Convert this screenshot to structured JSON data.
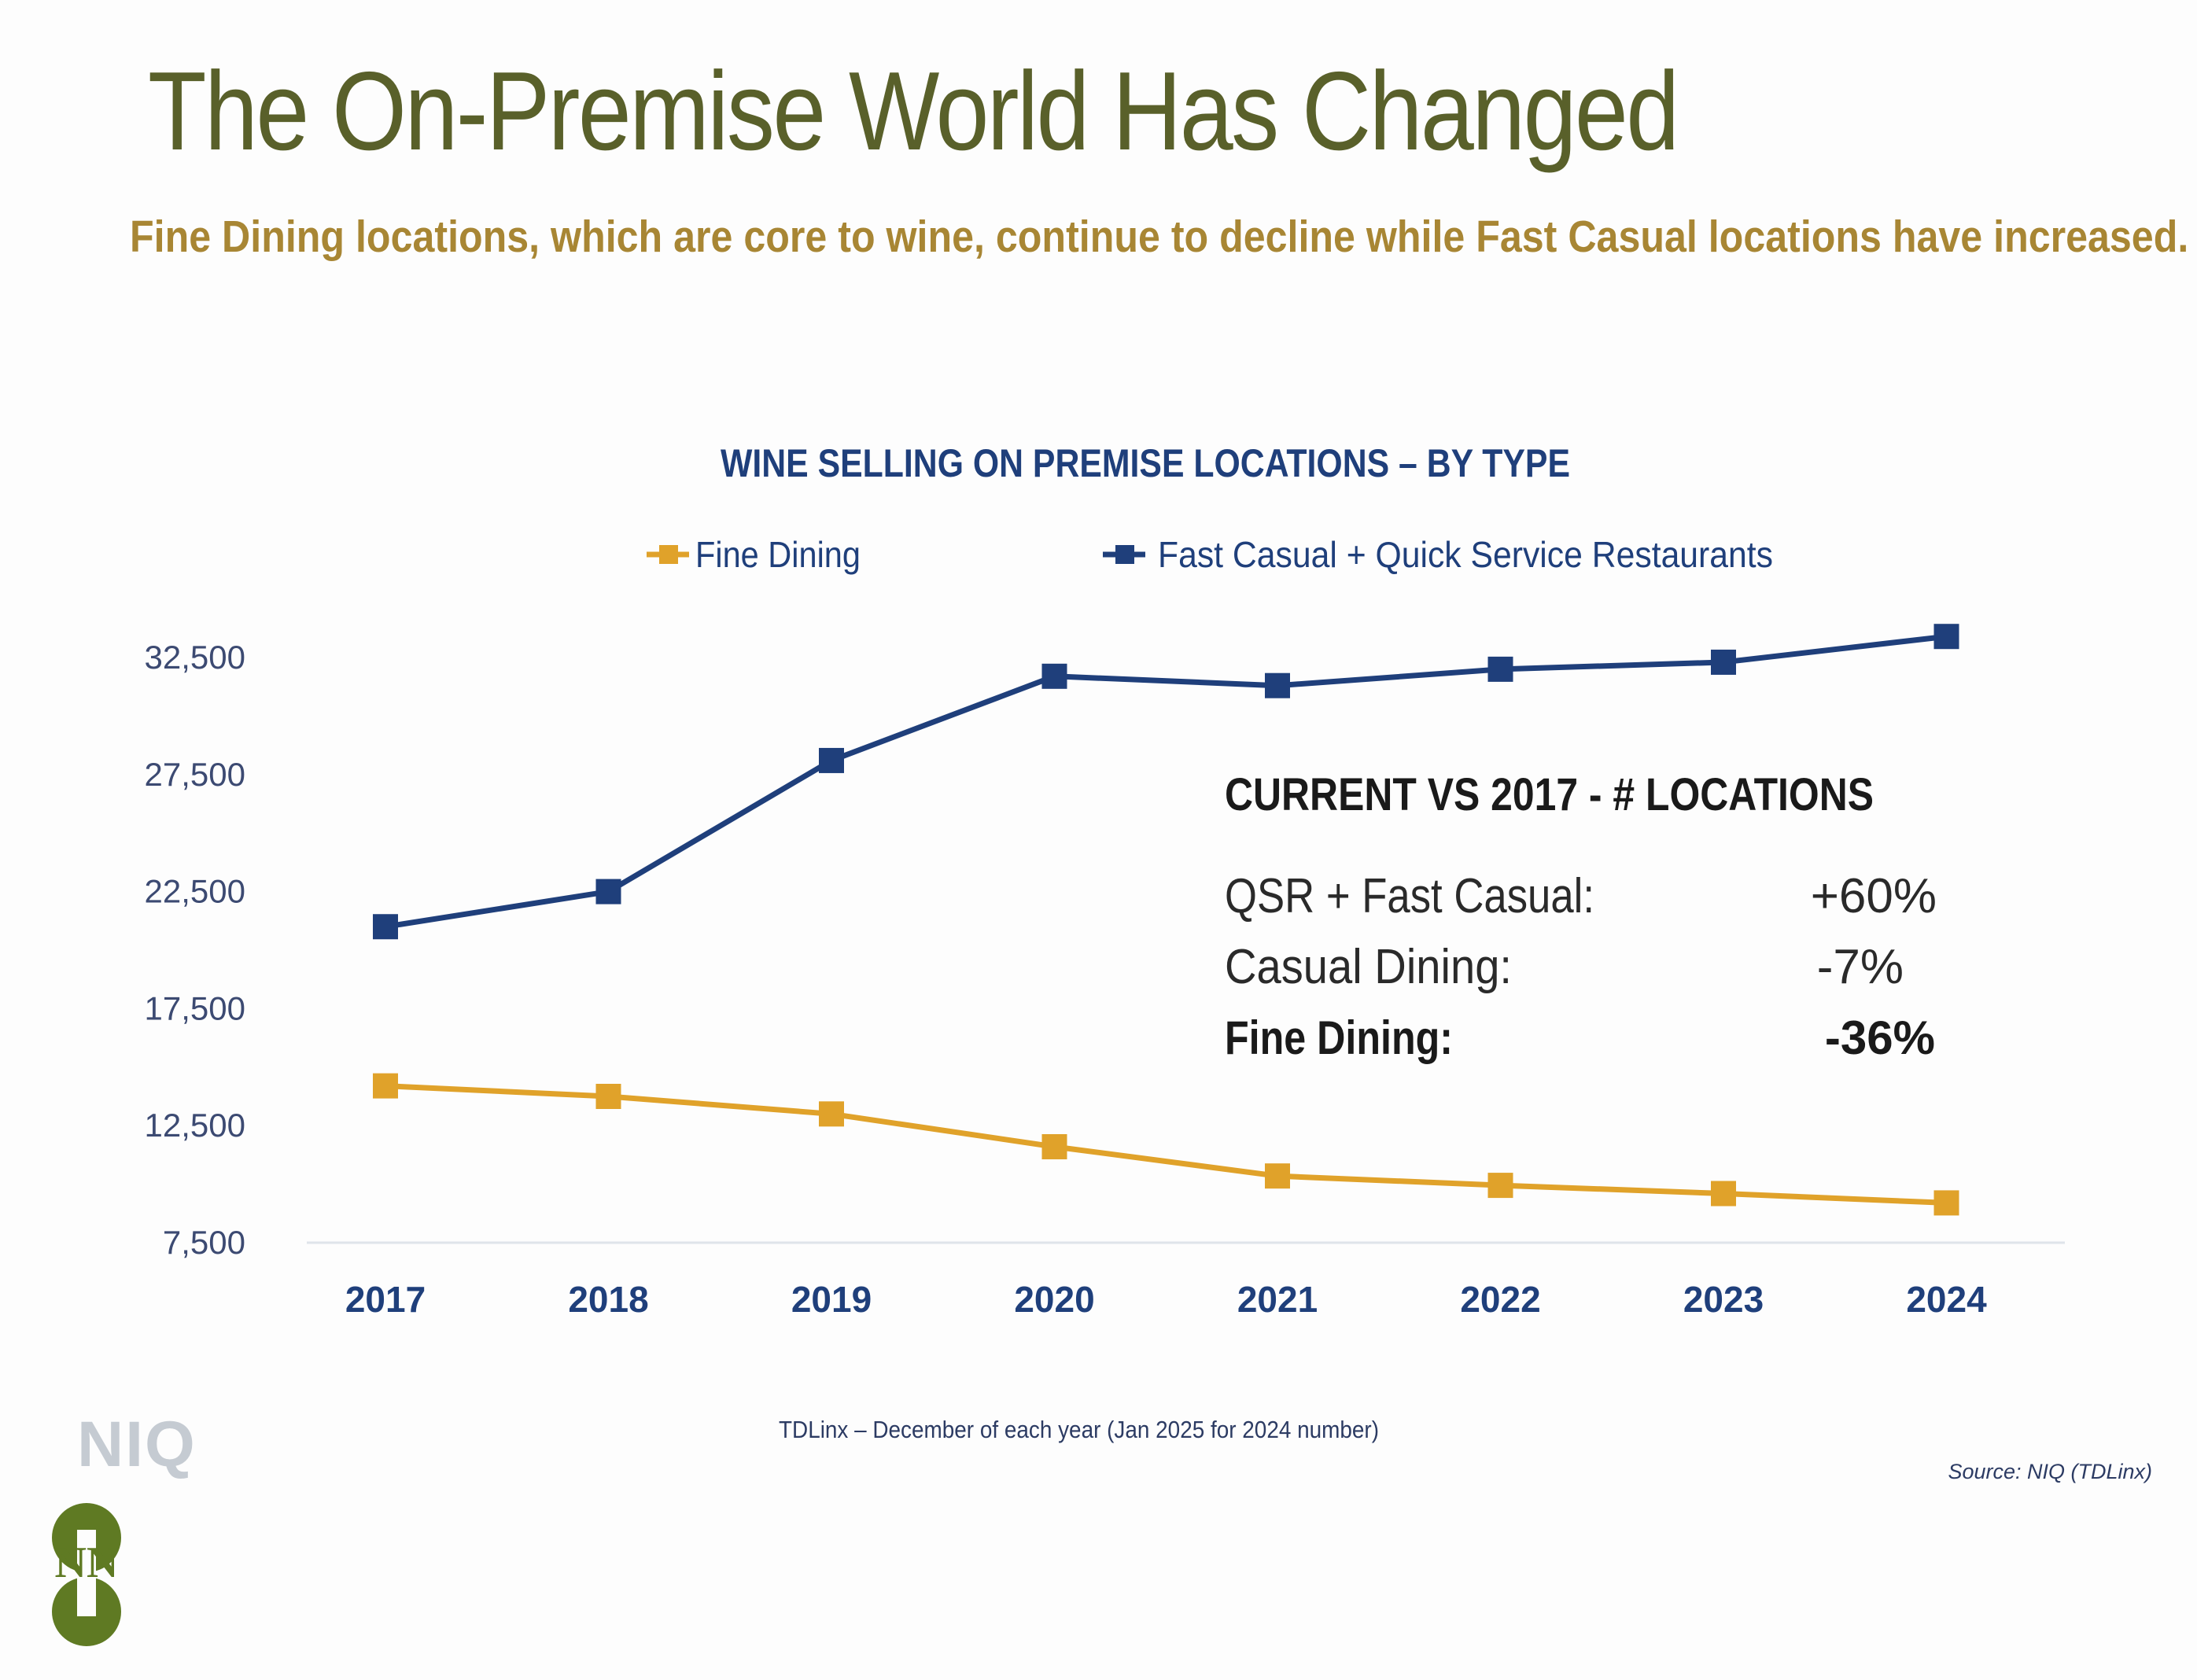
{
  "slide": {
    "title": "The On-Premise World Has Changed",
    "subtitle": "Fine Dining locations, which are core to wine, continue to decline while Fast Casual locations have increased.",
    "footnote": "TDLinx – December of each year (Jan 2025 for 2024 number)",
    "source": "Source: NIQ (TDLinx)",
    "brand": "NIQ",
    "logo_letters": "NN"
  },
  "colors": {
    "title": "#59602a",
    "subtitle": "#a88634",
    "fine_dining": "#e0a22a",
    "fast_casual": "#1f3f7b",
    "axis_text": "#3c4a72",
    "logo_green": "#5f7a23"
  },
  "chart_data": {
    "type": "line",
    "title": "WINE SELLING ON PREMISE LOCATIONS – BY TYPE",
    "categories": [
      "2017",
      "2018",
      "2019",
      "2020",
      "2021",
      "2022",
      "2023",
      "2024"
    ],
    "series": [
      {
        "name": "Fine Dining",
        "color": "#e0a22a",
        "values": [
          14200,
          13750,
          13000,
          11600,
          10350,
          9950,
          9600,
          9200
        ]
      },
      {
        "name": "Fast Casual + Quick Service Restaurants",
        "color": "#1f3f7b",
        "values": [
          21000,
          22500,
          28100,
          31700,
          31300,
          32000,
          32300,
          33400
        ]
      }
    ],
    "yticks": [
      "32,500",
      "27,500",
      "22,500",
      "17,500",
      "12,500",
      "7,500"
    ],
    "ytick_values": [
      32500,
      27500,
      22500,
      17500,
      12500,
      7500
    ],
    "ylim": [
      7500,
      32500
    ],
    "xlabel": "",
    "ylabel": "",
    "legend_position": "top-center",
    "marker": "square",
    "annotation": {
      "heading": "CURRENT VS 2017 - # LOCATIONS",
      "rows": [
        {
          "label": "QSR + Fast Casual:",
          "value": "+60%",
          "bold": false
        },
        {
          "label": "Casual Dining:",
          "value": "-7%",
          "bold": false
        },
        {
          "label": "Fine Dining:",
          "value": "-36%",
          "bold": true
        }
      ]
    }
  }
}
